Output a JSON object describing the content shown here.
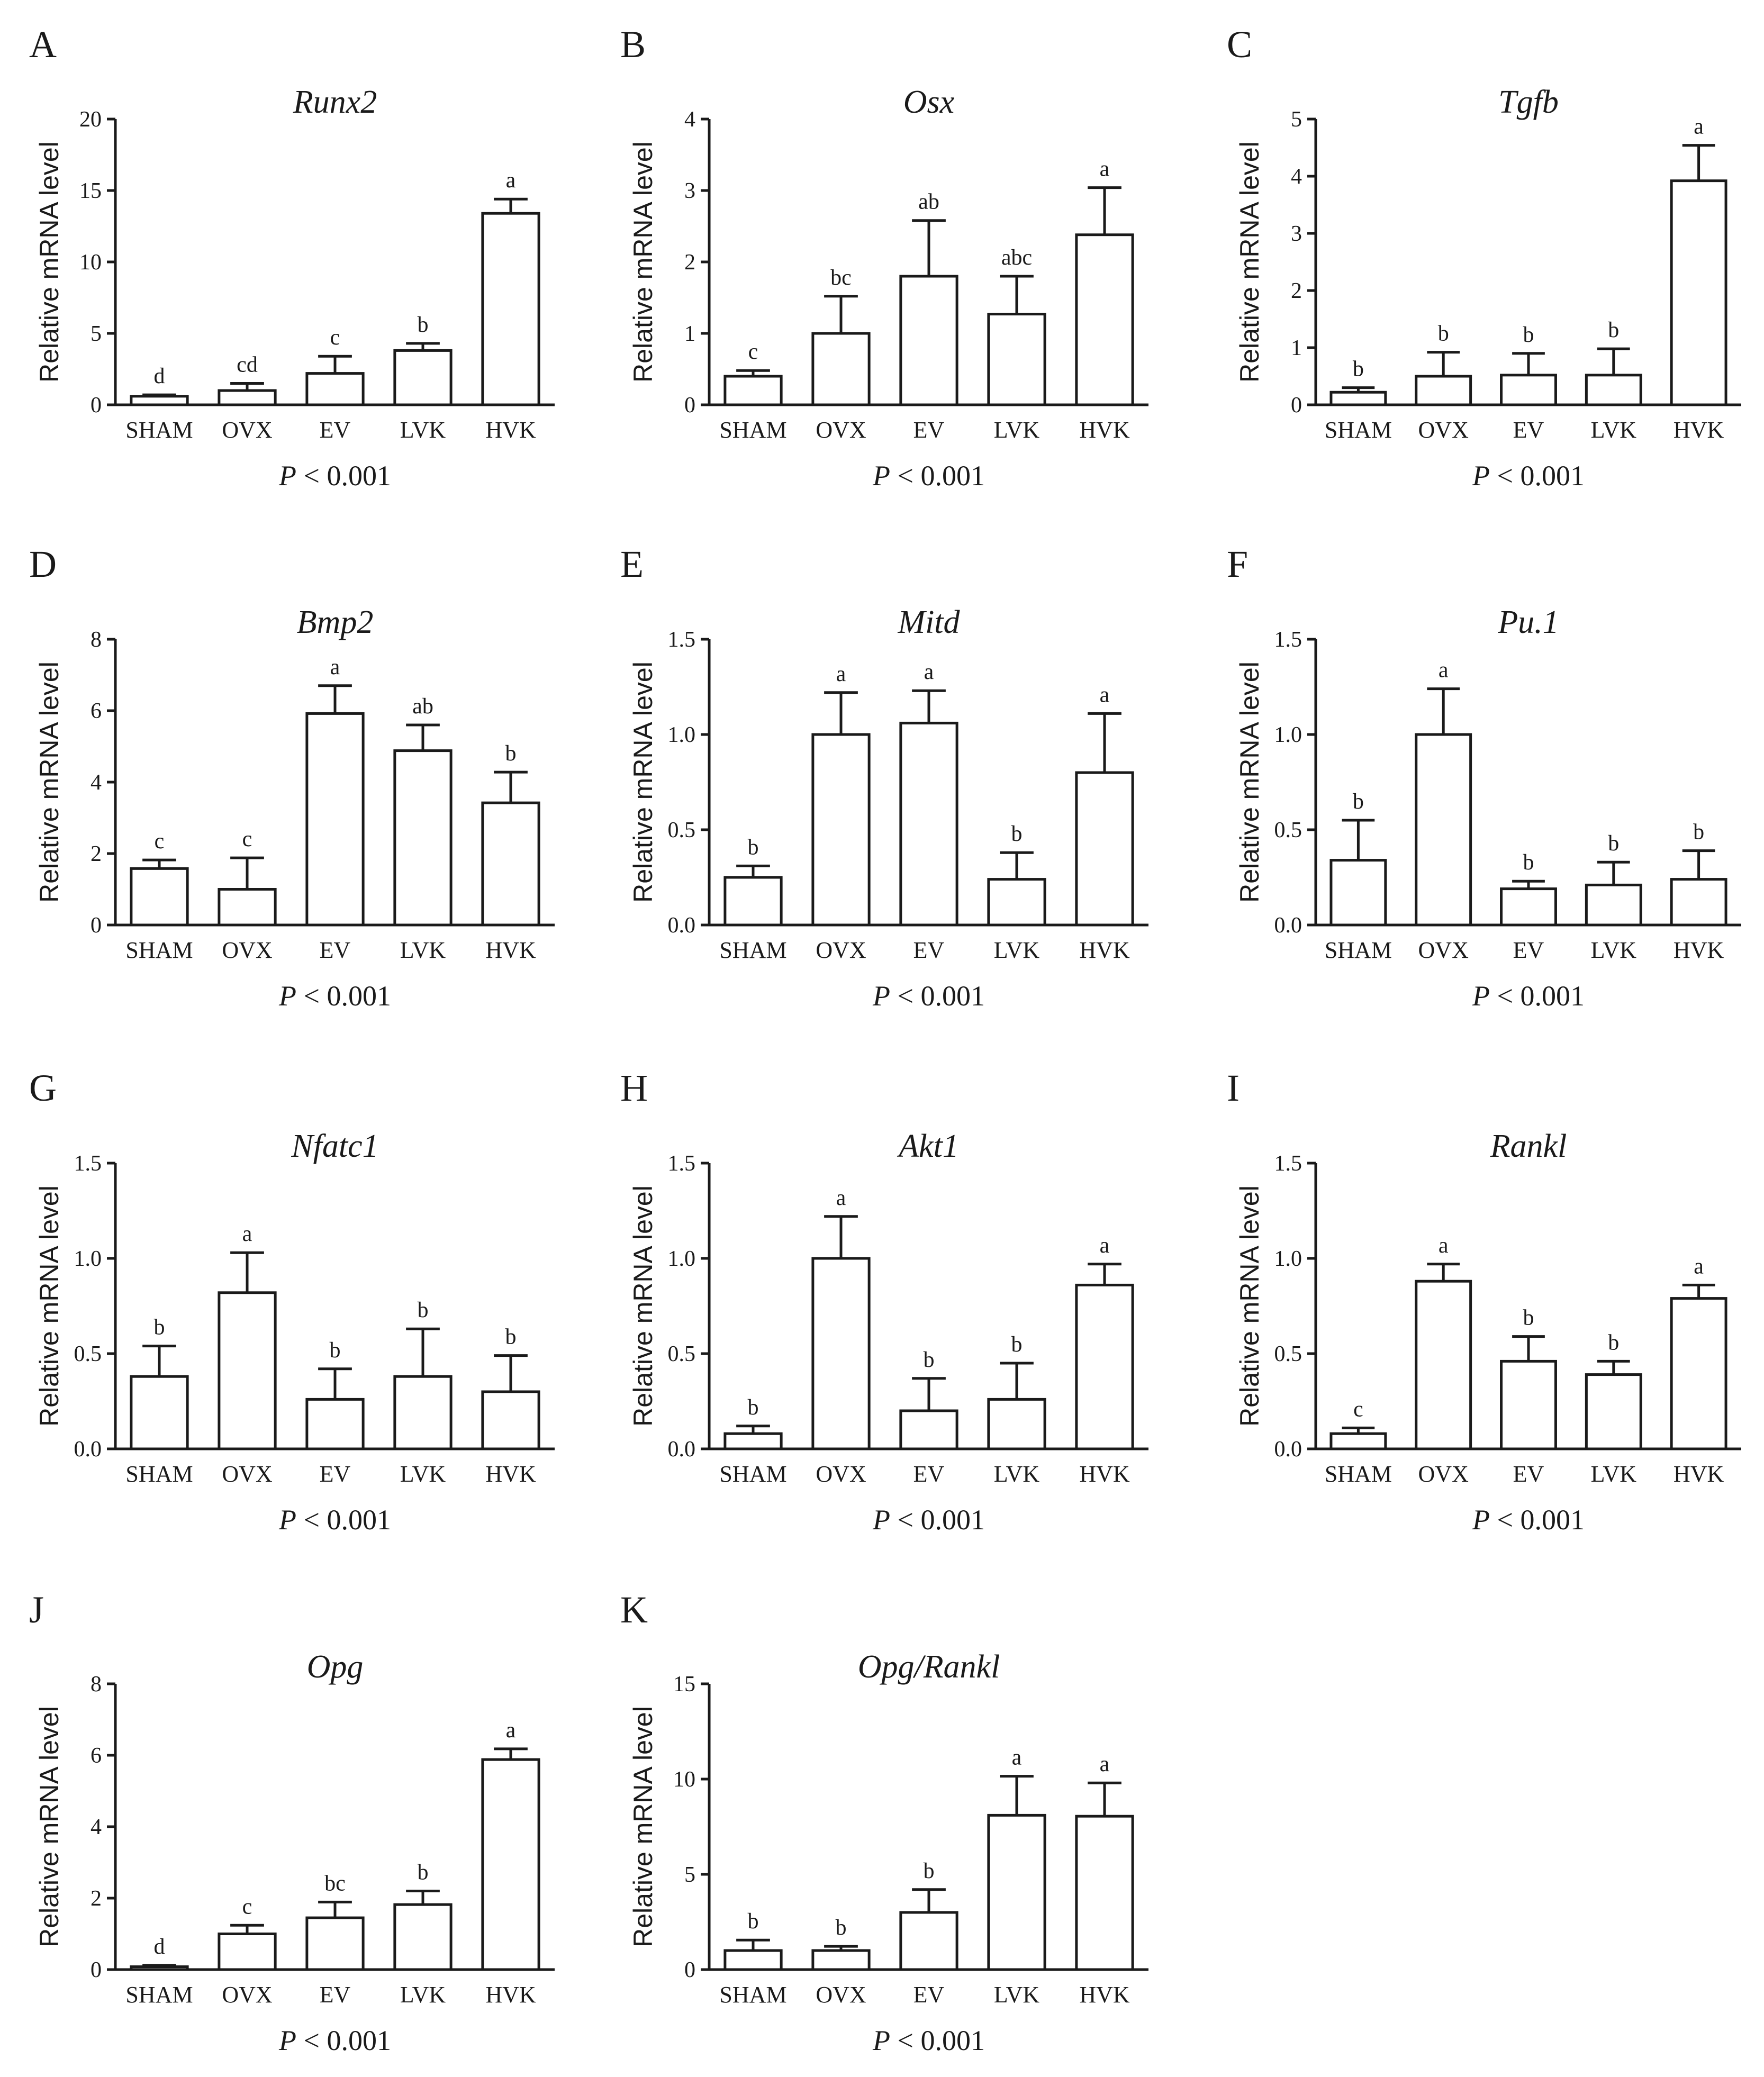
{
  "figure": {
    "categories": [
      "SHAM",
      "OVX",
      "EV",
      "LVK",
      "HVK"
    ]
  },
  "chart_data": [
    {
      "panel": "A",
      "type": "bar",
      "title": "Runx2",
      "ylabel": "Relative mRNA level",
      "ylim": [
        0,
        20
      ],
      "yticks": [
        "0",
        "5",
        "10",
        "15",
        "20"
      ],
      "categories": [
        "SHAM",
        "OVX",
        "EV",
        "LVK",
        "HVK"
      ],
      "values": [
        0.6,
        1.0,
        2.2,
        3.8,
        13.4
      ],
      "errors": [
        0.1,
        0.5,
        1.2,
        0.5,
        1.0
      ],
      "labels": [
        "d",
        "cd",
        "c",
        "b",
        "a"
      ],
      "p_prefix": "P",
      "p_text": "< 0.001"
    },
    {
      "panel": "B",
      "type": "bar",
      "title": "Osx",
      "ylabel": "Relative mRNA level",
      "ylim": [
        0,
        4
      ],
      "yticks": [
        "0",
        "1",
        "2",
        "3",
        "4"
      ],
      "categories": [
        "SHAM",
        "OVX",
        "EV",
        "LVK",
        "HVK"
      ],
      "values": [
        0.4,
        1.0,
        1.8,
        1.27,
        2.38
      ],
      "errors": [
        0.08,
        0.52,
        0.78,
        0.53,
        0.66
      ],
      "labels": [
        "c",
        "bc",
        "ab",
        "abc",
        "a"
      ],
      "p_prefix": "P",
      "p_text": "< 0.001"
    },
    {
      "panel": "C",
      "type": "bar",
      "title": "Tgfb",
      "ylabel": "Relative mRNA level",
      "ylim": [
        0,
        5
      ],
      "yticks": [
        "0",
        "1",
        "2",
        "3",
        "4",
        "5"
      ],
      "categories": [
        "SHAM",
        "OVX",
        "EV",
        "LVK",
        "HVK"
      ],
      "values": [
        0.22,
        0.5,
        0.52,
        0.52,
        3.92
      ],
      "errors": [
        0.08,
        0.42,
        0.38,
        0.46,
        0.62
      ],
      "labels": [
        "b",
        "b",
        "b",
        "b",
        "a"
      ],
      "p_prefix": "P",
      "p_text": "< 0.001"
    },
    {
      "panel": "D",
      "type": "bar",
      "title": "Bmp2",
      "ylabel": "Relative mRNA level",
      "ylim": [
        0,
        8
      ],
      "yticks": [
        "0",
        "2",
        "4",
        "6",
        "8"
      ],
      "categories": [
        "SHAM",
        "OVX",
        "EV",
        "LVK",
        "HVK"
      ],
      "values": [
        1.58,
        1.0,
        5.92,
        4.88,
        3.42
      ],
      "errors": [
        0.24,
        0.88,
        0.78,
        0.72,
        0.86
      ],
      "labels": [
        "c",
        "c",
        "a",
        "ab",
        "b"
      ],
      "p_prefix": "P",
      "p_text": "< 0.001"
    },
    {
      "panel": "E",
      "type": "bar",
      "title": "Mitd",
      "ylabel": "Relative mRNA level",
      "ylim": [
        0,
        1.5
      ],
      "yticks": [
        "0.0",
        "0.5",
        "1.0",
        "1.5"
      ],
      "categories": [
        "SHAM",
        "OVX",
        "EV",
        "LVK",
        "HVK"
      ],
      "values": [
        0.25,
        1.0,
        1.06,
        0.24,
        0.8
      ],
      "errors": [
        0.06,
        0.22,
        0.17,
        0.14,
        0.31
      ],
      "labels": [
        "b",
        "a",
        "a",
        "b",
        "a"
      ],
      "p_prefix": "P",
      "p_text": "< 0.001"
    },
    {
      "panel": "F",
      "type": "bar",
      "title": "Pu.1",
      "ylabel": "Relative mRNA level",
      "ylim": [
        0,
        1.5
      ],
      "yticks": [
        "0.0",
        "0.5",
        "1.0",
        "1.5"
      ],
      "categories": [
        "SHAM",
        "OVX",
        "EV",
        "LVK",
        "HVK"
      ],
      "values": [
        0.34,
        1.0,
        0.19,
        0.21,
        0.24
      ],
      "errors": [
        0.21,
        0.24,
        0.04,
        0.12,
        0.15
      ],
      "labels": [
        "b",
        "a",
        "b",
        "b",
        "b"
      ],
      "p_prefix": "P",
      "p_text": "< 0.001"
    },
    {
      "panel": "G",
      "type": "bar",
      "title": "Nfatc1",
      "ylabel": "Relative mRNA level",
      "ylim": [
        0,
        1.5
      ],
      "yticks": [
        "0.0",
        "0.5",
        "1.0",
        "1.5"
      ],
      "categories": [
        "SHAM",
        "OVX",
        "EV",
        "LVK",
        "HVK"
      ],
      "values": [
        0.38,
        0.82,
        0.26,
        0.38,
        0.3
      ],
      "errors": [
        0.16,
        0.21,
        0.16,
        0.25,
        0.19
      ],
      "labels": [
        "b",
        "a",
        "b",
        "b",
        "b"
      ],
      "p_prefix": "P",
      "p_text": "< 0.001"
    },
    {
      "panel": "H",
      "type": "bar",
      "title": "Akt1",
      "ylabel": "Relative mRNA level",
      "ylim": [
        0,
        1.5
      ],
      "yticks": [
        "0.0",
        "0.5",
        "1.0",
        "1.5"
      ],
      "categories": [
        "SHAM",
        "OVX",
        "EV",
        "LVK",
        "HVK"
      ],
      "values": [
        0.08,
        1.0,
        0.2,
        0.26,
        0.86
      ],
      "errors": [
        0.04,
        0.22,
        0.17,
        0.19,
        0.11
      ],
      "labels": [
        "b",
        "a",
        "b",
        "b",
        "a"
      ],
      "p_prefix": "P",
      "p_text": "< 0.001"
    },
    {
      "panel": "I",
      "type": "bar",
      "title": "Rankl",
      "ylabel": "Relative mRNA level",
      "ylim": [
        0,
        1.5
      ],
      "yticks": [
        "0.0",
        "0.5",
        "1.0",
        "1.5"
      ],
      "categories": [
        "SHAM",
        "OVX",
        "EV",
        "LVK",
        "HVK"
      ],
      "values": [
        0.08,
        0.88,
        0.46,
        0.39,
        0.79
      ],
      "errors": [
        0.03,
        0.09,
        0.13,
        0.07,
        0.07
      ],
      "labels": [
        "c",
        "a",
        "b",
        "b",
        "a"
      ],
      "p_prefix": "P",
      "p_text": "< 0.001"
    },
    {
      "panel": "J",
      "type": "bar",
      "title": "Opg",
      "ylabel": "Relative mRNA level",
      "ylim": [
        0,
        8
      ],
      "yticks": [
        "0",
        "2",
        "4",
        "6",
        "8"
      ],
      "categories": [
        "SHAM",
        "OVX",
        "EV",
        "LVK",
        "HVK"
      ],
      "values": [
        0.08,
        1.0,
        1.45,
        1.82,
        5.88
      ],
      "errors": [
        0.04,
        0.24,
        0.44,
        0.38,
        0.3
      ],
      "labels": [
        "d",
        "c",
        "bc",
        "b",
        "a"
      ],
      "p_prefix": "P",
      "p_text": "< 0.001"
    },
    {
      "panel": "K",
      "type": "bar",
      "title": "Opg/Rankl",
      "ylabel": "Relative mRNA level",
      "ylim": [
        0,
        15
      ],
      "yticks": [
        "0",
        "5",
        "10",
        "15"
      ],
      "categories": [
        "SHAM",
        "OVX",
        "EV",
        "LVK",
        "HVK"
      ],
      "values": [
        1.0,
        1.0,
        3.0,
        8.1,
        8.05
      ],
      "errors": [
        0.55,
        0.22,
        1.2,
        2.05,
        1.75
      ],
      "labels": [
        "b",
        "b",
        "b",
        "a",
        "a"
      ],
      "p_prefix": "P",
      "p_text": "< 0.001"
    }
  ]
}
